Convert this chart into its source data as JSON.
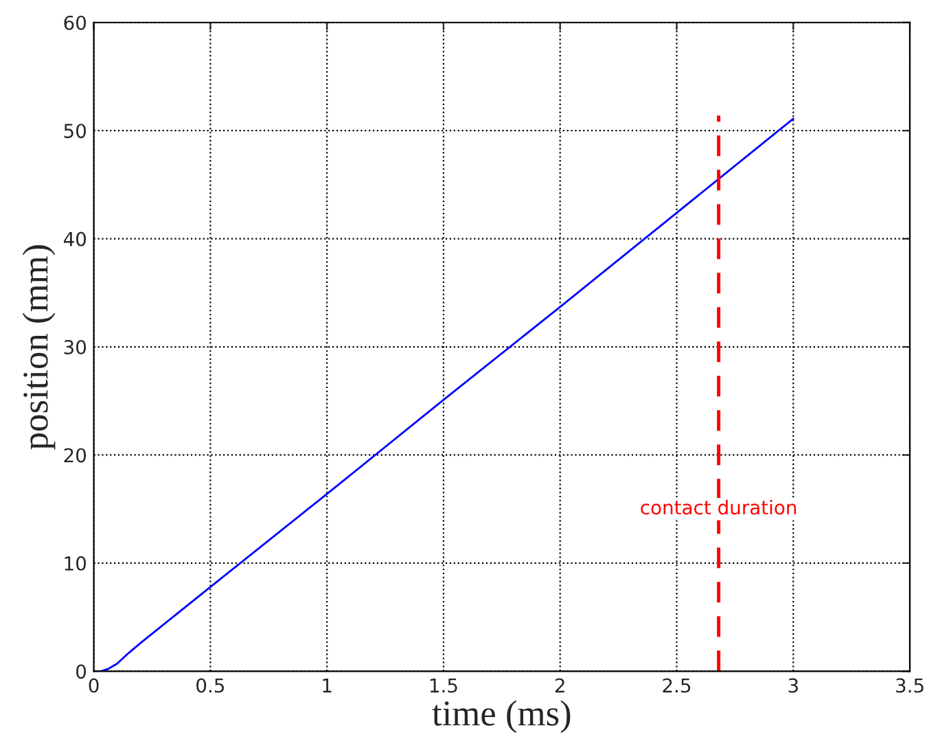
{
  "chart_data": {
    "type": "line",
    "xlabel": "time (ms)",
    "ylabel": "position (mm)",
    "series": [
      {
        "color": "#0000ff",
        "line_style": "solid",
        "x": [
          0,
          0.03,
          0.06,
          0.1,
          0.15,
          0.2,
          0.5,
          1,
          1.5,
          2,
          2.5,
          3
        ],
        "values": [
          0,
          0,
          0.2,
          0.7,
          1.7,
          2.6,
          7.8,
          16.4,
          25.1,
          33.7,
          42.4,
          51.1
        ]
      },
      {
        "color": "#ff0000",
        "line_style": "dashed",
        "x": [
          2.68,
          2.68
        ],
        "values": [
          0,
          51.4
        ]
      }
    ],
    "annotations": [
      {
        "text": "contact duration",
        "x": 2.68,
        "y": 15
      }
    ],
    "xlim": [
      0,
      3.5
    ],
    "xticks": [
      0,
      0.5,
      1,
      1.5,
      2,
      2.5,
      3,
      3.5
    ],
    "ylim": [
      0,
      60
    ],
    "yticks": [
      0,
      10,
      20,
      30,
      40,
      50,
      60
    ],
    "grid": true,
    "legend": false,
    "marker": "none"
  }
}
